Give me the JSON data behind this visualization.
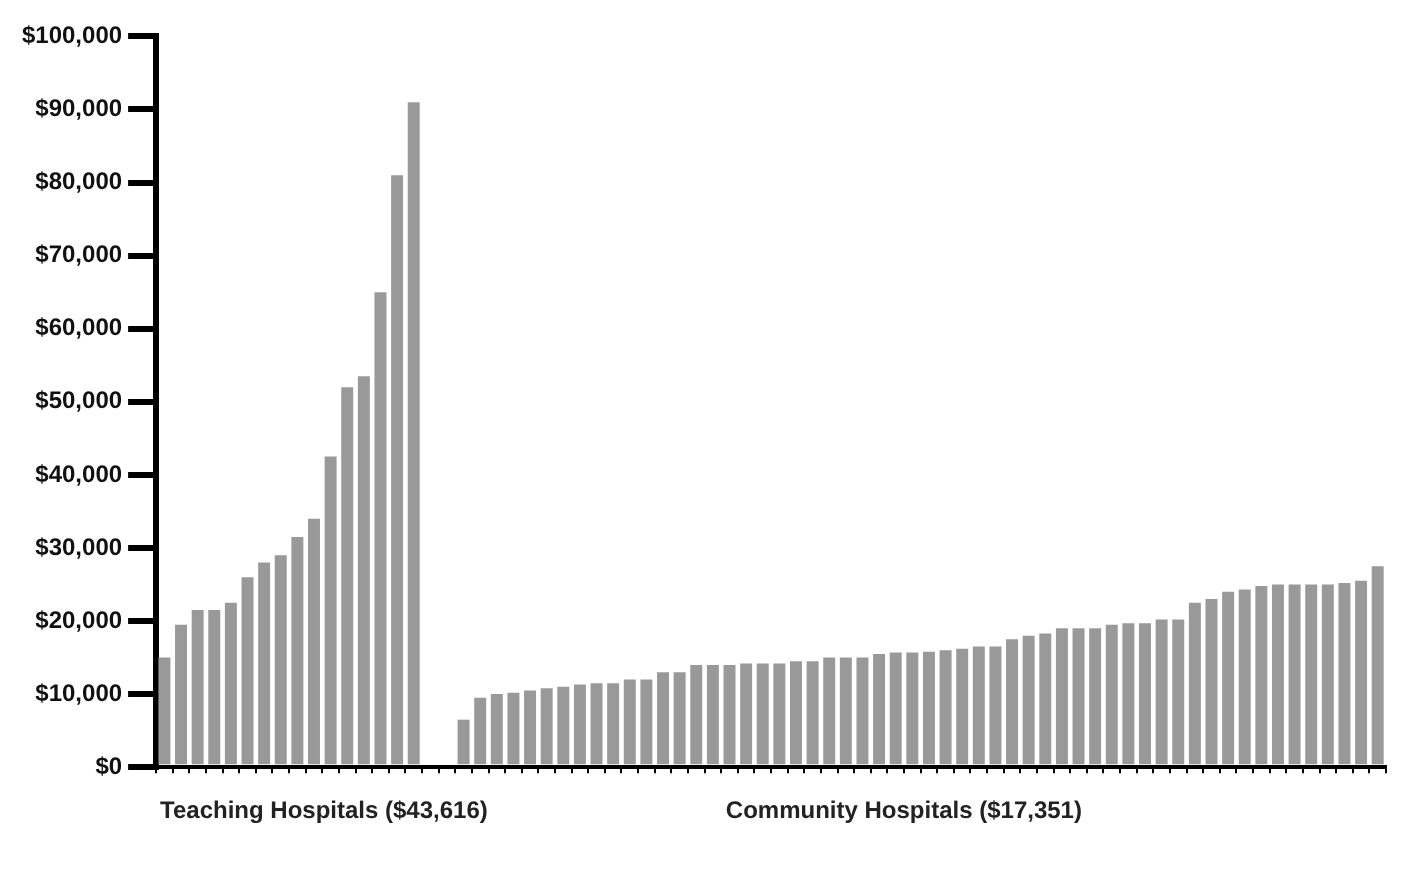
{
  "chart_data": {
    "type": "bar",
    "categories": [
      null,
      null,
      null,
      null,
      null,
      null,
      null,
      null,
      null,
      null,
      null,
      null,
      null,
      null,
      null,
      null,
      null,
      null,
      null,
      null,
      null,
      null,
      null,
      null,
      null,
      null,
      null,
      null,
      null,
      null,
      null,
      null,
      null,
      null,
      null,
      null,
      null,
      null,
      null,
      null,
      null,
      null,
      null,
      null,
      null,
      null,
      null,
      null,
      null,
      null,
      null,
      null,
      null,
      null,
      null,
      null,
      null,
      null,
      null,
      null,
      null,
      null,
      null,
      null,
      null,
      null,
      null,
      null,
      null,
      null,
      null,
      null,
      null,
      null
    ],
    "values": [
      15000,
      19500,
      21500,
      21500,
      22500,
      26000,
      28000,
      29000,
      31500,
      34000,
      42500,
      52000,
      53500,
      65000,
      81000,
      91000,
      null,
      null,
      6500,
      9500,
      10000,
      10200,
      10500,
      10800,
      11000,
      11300,
      11500,
      11500,
      12000,
      12000,
      13000,
      13000,
      14000,
      14000,
      14000,
      14200,
      14200,
      14200,
      14500,
      14500,
      15000,
      15000,
      15000,
      15500,
      15700,
      15700,
      15800,
      16000,
      16200,
      16500,
      16500,
      17500,
      18000,
      18300,
      19000,
      19000,
      19000,
      19500,
      19700,
      19700,
      20200,
      20200,
      22500,
      23000,
      24000,
      24300,
      24800,
      25000,
      25000,
      25000,
      25000,
      25200,
      25500,
      27500
    ],
    "color": "#999999",
    "ylim": [
      0,
      100000
    ],
    "yticks": [
      {
        "value": 0,
        "label": "$0"
      },
      {
        "value": 10000,
        "label": "$10,000"
      },
      {
        "value": 20000,
        "label": "$20,000"
      },
      {
        "value": 30000,
        "label": "$30,000"
      },
      {
        "value": 40000,
        "label": "$40,000"
      },
      {
        "value": 50000,
        "label": "$50,000"
      },
      {
        "value": 60000,
        "label": "$60,000"
      },
      {
        "value": 70000,
        "label": "$70,000"
      },
      {
        "value": 80000,
        "label": "$80,000"
      },
      {
        "value": 90000,
        "label": "$90,000"
      },
      {
        "value": 100000,
        "label": "$100,000"
      }
    ],
    "annotations": [
      "Teaching Hospitals ($43,616)",
      "Community Hospitals ($17,351)"
    ],
    "grid": false,
    "legend": false
  }
}
